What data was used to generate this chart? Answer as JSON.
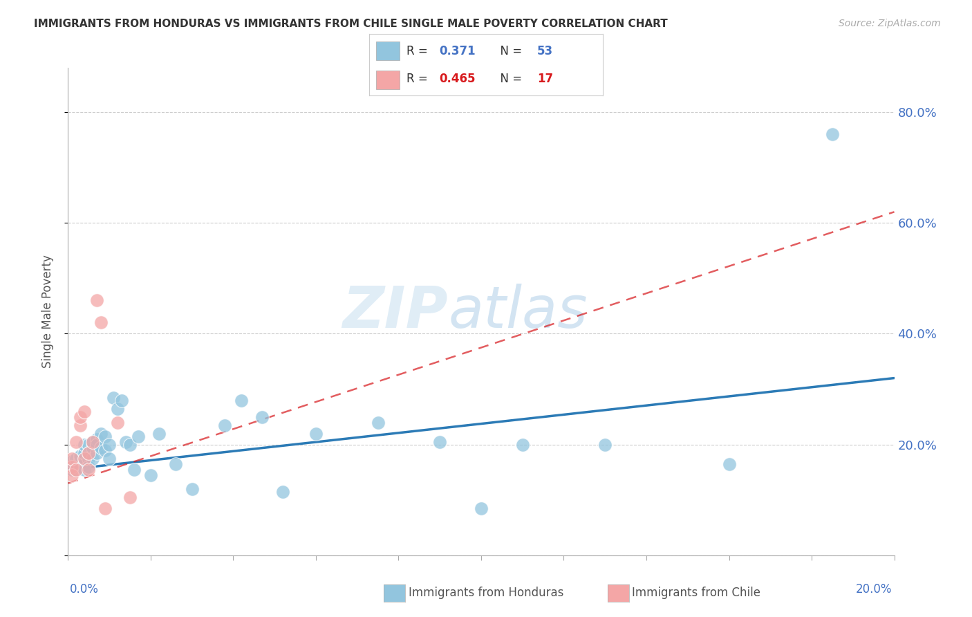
{
  "title": "IMMIGRANTS FROM HONDURAS VS IMMIGRANTS FROM CHILE SINGLE MALE POVERTY CORRELATION CHART",
  "source": "Source: ZipAtlas.com",
  "ylabel": "Single Male Poverty",
  "xlim": [
    0.0,
    0.2
  ],
  "ylim": [
    0.0,
    0.88
  ],
  "honduras_color": "#92c5de",
  "chile_color": "#f4a6a6",
  "honduras_line_color": "#2c7bb6",
  "chile_line_color": "#d7191c",
  "honduras_r": "0.371",
  "honduras_n": "53",
  "chile_r": "0.465",
  "chile_n": "17",
  "background_color": "#ffffff",
  "grid_color": "#cccccc",
  "honduras_x": [
    0.001,
    0.001,
    0.002,
    0.002,
    0.002,
    0.003,
    0.003,
    0.003,
    0.003,
    0.004,
    0.004,
    0.004,
    0.004,
    0.004,
    0.005,
    0.005,
    0.005,
    0.005,
    0.006,
    0.006,
    0.006,
    0.007,
    0.007,
    0.007,
    0.008,
    0.008,
    0.009,
    0.009,
    0.01,
    0.01,
    0.011,
    0.012,
    0.013,
    0.014,
    0.015,
    0.016,
    0.017,
    0.02,
    0.022,
    0.026,
    0.03,
    0.038,
    0.042,
    0.047,
    0.052,
    0.06,
    0.075,
    0.09,
    0.1,
    0.11,
    0.13,
    0.16,
    0.185
  ],
  "honduras_y": [
    0.17,
    0.155,
    0.165,
    0.175,
    0.155,
    0.165,
    0.175,
    0.18,
    0.16,
    0.165,
    0.175,
    0.185,
    0.2,
    0.155,
    0.175,
    0.16,
    0.2,
    0.185,
    0.195,
    0.175,
    0.205,
    0.21,
    0.185,
    0.2,
    0.22,
    0.195,
    0.215,
    0.19,
    0.2,
    0.175,
    0.285,
    0.265,
    0.28,
    0.205,
    0.2,
    0.155,
    0.215,
    0.145,
    0.22,
    0.165,
    0.12,
    0.235,
    0.28,
    0.25,
    0.115,
    0.22,
    0.24,
    0.205,
    0.085,
    0.2,
    0.2,
    0.165,
    0.76
  ],
  "chile_x": [
    0.001,
    0.001,
    0.001,
    0.002,
    0.002,
    0.003,
    0.003,
    0.004,
    0.004,
    0.005,
    0.005,
    0.006,
    0.007,
    0.008,
    0.009,
    0.012,
    0.015
  ],
  "chile_y": [
    0.16,
    0.175,
    0.145,
    0.205,
    0.155,
    0.235,
    0.25,
    0.26,
    0.175,
    0.185,
    0.155,
    0.205,
    0.46,
    0.42,
    0.085,
    0.24,
    0.105
  ],
  "honduras_line_x": [
    0.0,
    0.2
  ],
  "honduras_line_y": [
    0.155,
    0.32
  ],
  "chile_line_x": [
    0.0,
    0.2
  ],
  "chile_line_y": [
    0.13,
    0.62
  ]
}
